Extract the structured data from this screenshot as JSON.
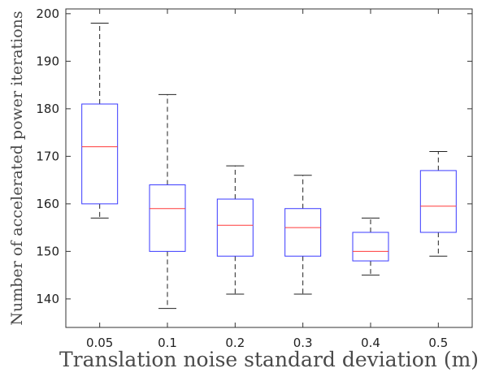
{
  "chart_data": {
    "type": "box",
    "categories": [
      "0.05",
      "0.1",
      "0.2",
      "0.3",
      "0.4",
      "0.5"
    ],
    "boxes": [
      {
        "label": "0.05",
        "min": 157,
        "q1": 160,
        "median": 172,
        "q3": 181,
        "max": 198
      },
      {
        "label": "0.1",
        "min": 138,
        "q1": 150,
        "median": 159,
        "q3": 164,
        "max": 183
      },
      {
        "label": "0.2",
        "min": 141,
        "q1": 149,
        "median": 155.5,
        "q3": 161,
        "max": 168
      },
      {
        "label": "0.3",
        "min": 141,
        "q1": 149,
        "median": 155,
        "q3": 159,
        "max": 166
      },
      {
        "label": "0.4",
        "min": 145,
        "q1": 148,
        "median": 150,
        "q3": 154,
        "max": 157
      },
      {
        "label": "0.5",
        "min": 149,
        "q1": 154,
        "median": 159.5,
        "q3": 167,
        "max": 171
      }
    ],
    "xlabel": "Translation noise standard deviation (m)",
    "ylabel": "Number of accelerated power iterations",
    "ylim": [
      134,
      201
    ],
    "yticks": [
      140,
      150,
      160,
      170,
      180,
      190,
      200
    ],
    "grid": false,
    "legend": "none",
    "colors": {
      "box": "#3a3aff",
      "median": "#ff3a3a",
      "whisker": "#222222",
      "axis": "#333333"
    }
  }
}
